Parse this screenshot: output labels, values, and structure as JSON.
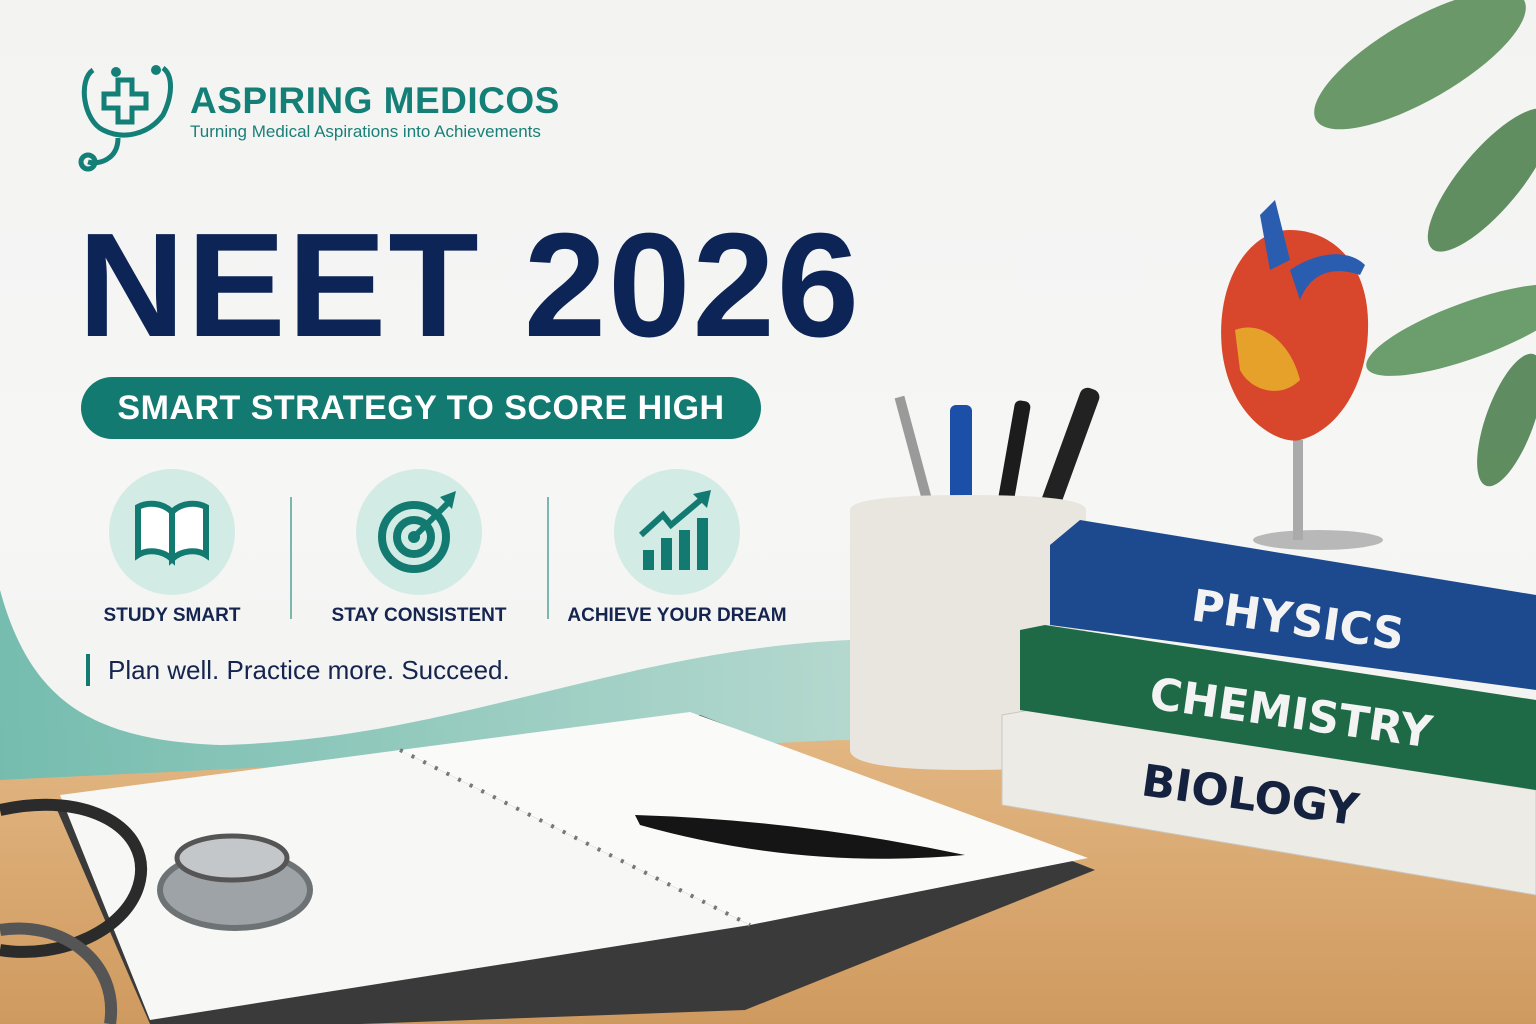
{
  "brand": {
    "name": "ASPIRING MEDICOS",
    "tagline": "Turning Medical Aspirations into Achievements",
    "logo_icon": "stethoscope-cross-icon"
  },
  "headline": "NEET 2026",
  "subheadline": "SMART STRATEGY TO SCORE HIGH",
  "features": [
    {
      "label": "STUDY SMART",
      "icon": "open-book-icon"
    },
    {
      "label": "STAY CONSISTENT",
      "icon": "target-arrow-icon"
    },
    {
      "label": "ACHIEVE YOUR DREAM",
      "icon": "growth-chart-icon"
    }
  ],
  "motto": "Plan well. Practice more. Succeed.",
  "books": [
    "PHYSICS",
    "CHEMISTRY",
    "BIOLOGY"
  ],
  "colors": {
    "primary_teal": "#137a71",
    "navy": "#0d2556",
    "physics_book": "#1d4a8f",
    "chemistry_book": "#1e6a47",
    "biology_book": "#ecebe6",
    "desk": "#d9a76f"
  }
}
